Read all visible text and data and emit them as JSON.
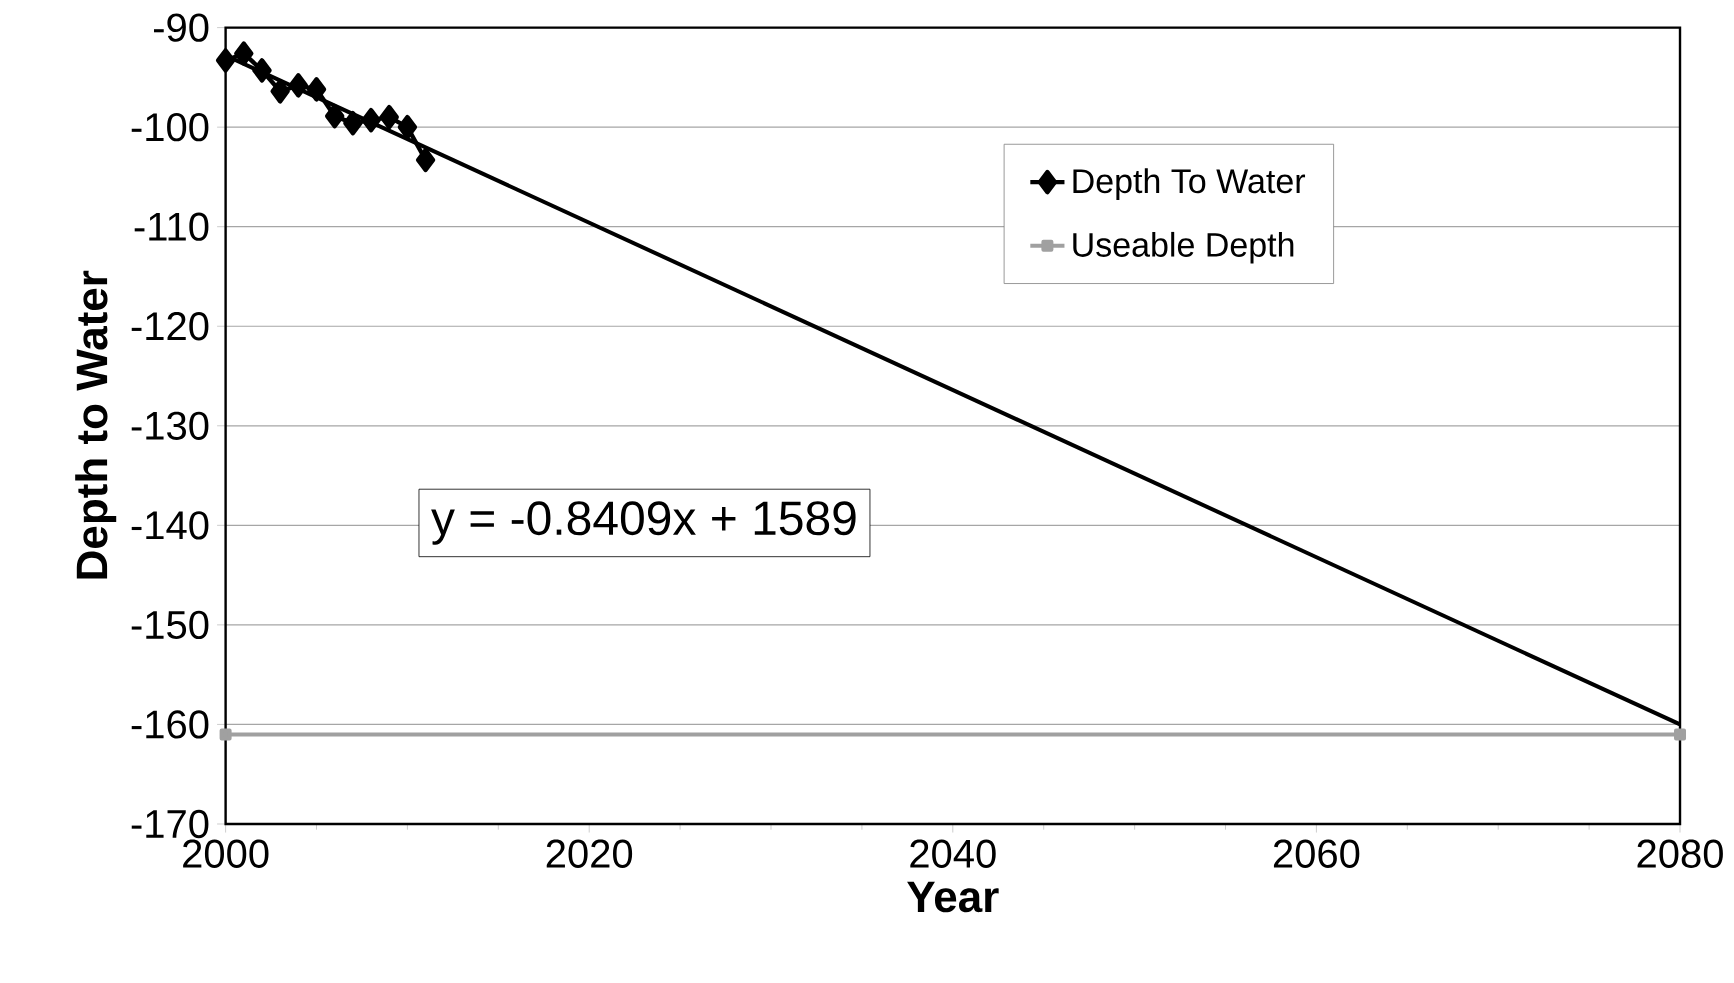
{
  "chart_data": {
    "type": "line",
    "xlabel": "Year",
    "ylabel": "Depth to Water",
    "xlim": [
      2000,
      2080
    ],
    "xticks": [
      2000,
      2020,
      2040,
      2060,
      2080
    ],
    "ylim": [
      -170,
      -90
    ],
    "yticks": [
      -170,
      -160,
      -150,
      -140,
      -130,
      -120,
      -110,
      -100,
      -90
    ],
    "grid": "y",
    "legend": "top right",
    "series": [
      {
        "name": "Depth To Water",
        "color": "#000000",
        "marker": "diamond",
        "x": [
          2000,
          2001,
          2002,
          2003,
          2004,
          2005,
          2006,
          2007,
          2008,
          2009,
          2010,
          2011
        ],
        "values": [
          -93.3,
          -92.6,
          -94.3,
          -96.4,
          -95.8,
          -96.2,
          -98.9,
          -99.6,
          -99.3,
          -99.0,
          -100.0,
          -103.3
        ]
      },
      {
        "name": "Useable Depth",
        "color": "#a0a0a0",
        "marker": "square",
        "x": [
          2000,
          2080
        ],
        "values": [
          -161,
          -161
        ]
      },
      {
        "type": "line",
        "color": "#000000",
        "marker": "none",
        "x": [
          2000,
          2080
        ],
        "values": [
          -92.8,
          -160.0
        ]
      }
    ],
    "annotations": [
      "y = -0.8409x + 1589"
    ]
  }
}
